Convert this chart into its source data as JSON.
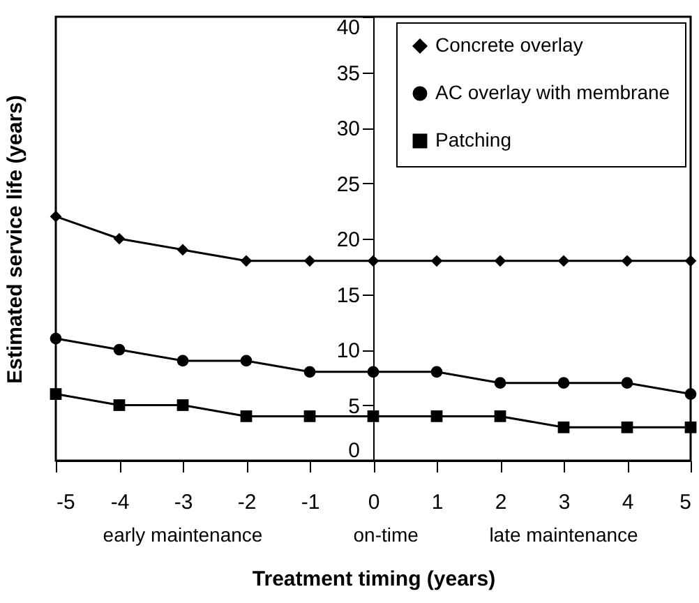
{
  "chart_data": {
    "type": "line",
    "xlabel": "Treatment timing (years)",
    "ylabel": "Estimated service life (years)",
    "x": [
      -5,
      -4,
      -3,
      -2,
      -1,
      0,
      1,
      2,
      3,
      4,
      5
    ],
    "xlim": [
      -5,
      5
    ],
    "xticks": [
      -5,
      -4,
      -3,
      -2,
      -1,
      0,
      1,
      2,
      3,
      4,
      5
    ],
    "ylim": [
      0,
      40
    ],
    "yticks": [
      0,
      5,
      10,
      15,
      20,
      25,
      30,
      35,
      40
    ],
    "series": [
      {
        "name": "Concrete overlay",
        "color": "#000000",
        "marker": "diamond",
        "values": [
          22,
          20,
          19,
          18,
          18,
          18,
          18,
          18,
          18,
          18,
          18
        ]
      },
      {
        "name": "AC overlay with membrane",
        "color": "#000000",
        "marker": "circle",
        "values": [
          11,
          10,
          9,
          9,
          8,
          8,
          8,
          7,
          7,
          7,
          6
        ]
      },
      {
        "name": "Patching",
        "color": "#000000",
        "marker": "square",
        "values": [
          6,
          5,
          5,
          4,
          4,
          4,
          4,
          4,
          3,
          3,
          3
        ]
      }
    ],
    "annotations": [
      "early maintenance",
      "on-time",
      "late maintenance"
    ],
    "legend": "top right",
    "grid": false
  }
}
